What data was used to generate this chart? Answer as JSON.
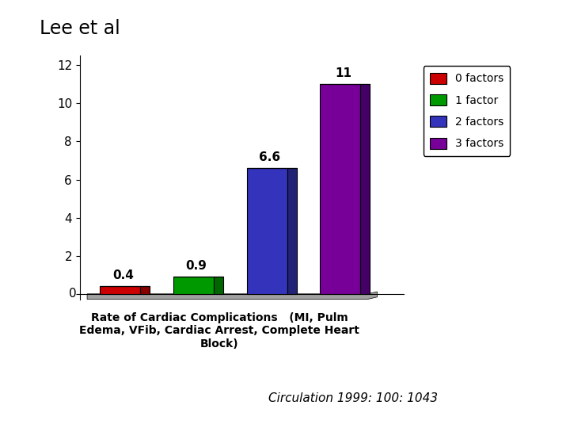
{
  "title": "Lee et al",
  "categories": [
    "0 factors",
    "1 factor",
    "2 factors",
    "3 factors"
  ],
  "values": [
    0.4,
    0.9,
    6.6,
    11
  ],
  "bar_colors": [
    "#cc0000",
    "#009900",
    "#3333bb",
    "#770099"
  ],
  "bar_edge_colors": [
    "#880000",
    "#006600",
    "#222277",
    "#440066"
  ],
  "bar_top_colors": [
    "#dd3333",
    "#33bb33",
    "#5555dd",
    "#9933bb"
  ],
  "ylim": [
    0,
    12
  ],
  "yticks": [
    0,
    2,
    4,
    6,
    8,
    10,
    12
  ],
  "xlabel_line1": "Rate of Cardiac Complications   (MI, Pulm",
  "xlabel_line2": "Edema, VFib, Cardiac Arrest, Complete Heart",
  "xlabel_line3": "Block)",
  "xlabel_fontsize": 10,
  "bar_label_fontsize": 11,
  "value_labels": [
    "0.4",
    "0.9",
    "6.6",
    "11"
  ],
  "legend_labels": [
    "0 factors",
    "1 factor",
    "2 factors",
    "3 factors"
  ],
  "background_color": "#ffffff",
  "citation": "Circulation 1999: 100: 1043",
  "teal_color": "#008080",
  "gray_floor_color": "#a0a0a0"
}
